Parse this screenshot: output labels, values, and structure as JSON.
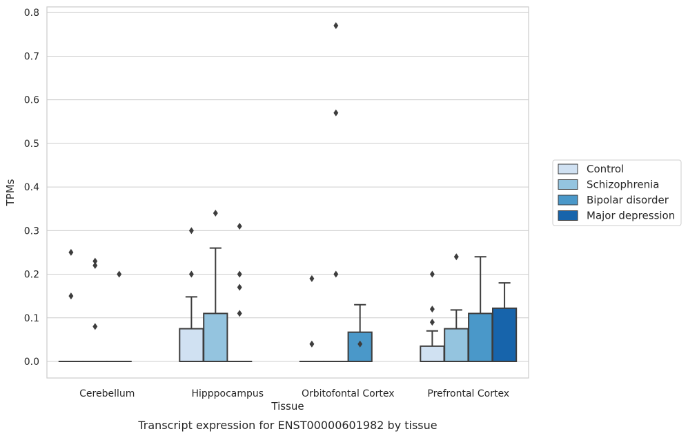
{
  "chart_data": {
    "type": "box",
    "title": "",
    "caption": "Transcript expression for ENST00000601982 by tissue",
    "xlabel": "Tissue",
    "ylabel": "TPMs",
    "ylim": [
      -0.038,
      0.813
    ],
    "yticks": [
      "0.0",
      "0.1",
      "0.2",
      "0.3",
      "0.4",
      "0.5",
      "0.6",
      "0.7",
      "0.8"
    ],
    "grid": true,
    "legend_position": "right",
    "categories": [
      "Cerebellum",
      "Hipppocampus",
      "Orbitofontal Cortex",
      "Prefrontal Cortex"
    ],
    "series": [
      {
        "name": "Control",
        "color": "#d0e1f2",
        "boxes": [
          {
            "q1": 0,
            "median": 0,
            "q3": 0,
            "whislo": 0,
            "whishi": 0,
            "fliers": [
              0.25,
              0.15
            ]
          },
          {
            "q1": 0,
            "median": 0,
            "q3": 0.075,
            "whislo": 0,
            "whishi": 0.148,
            "fliers": [
              0.3,
              0.2
            ]
          },
          {
            "q1": 0,
            "median": 0,
            "q3": 0,
            "whislo": 0,
            "whishi": 0,
            "fliers": [
              0.19,
              0.04
            ]
          },
          {
            "q1": 0,
            "median": 0,
            "q3": 0.035,
            "whislo": 0,
            "whishi": 0.07,
            "fliers": [
              0.2,
              0.12,
              0.09
            ]
          }
        ]
      },
      {
        "name": "Schizophrenia",
        "color": "#94c4df",
        "boxes": [
          {
            "q1": 0,
            "median": 0,
            "q3": 0,
            "whislo": 0,
            "whishi": 0,
            "fliers": [
              0.23,
              0.22,
              0.08
            ]
          },
          {
            "q1": 0,
            "median": 0,
            "q3": 0.11,
            "whislo": 0,
            "whishi": 0.26,
            "fliers": [
              0.34
            ]
          },
          {
            "q1": 0,
            "median": 0,
            "q3": 0,
            "whislo": 0,
            "whishi": 0,
            "fliers": [
              0.77,
              0.57,
              0.2
            ]
          },
          {
            "q1": 0,
            "median": 0,
            "q3": 0.075,
            "whislo": 0,
            "whishi": 0.118,
            "fliers": [
              0.24
            ]
          }
        ]
      },
      {
        "name": "Bipolar disorder",
        "color": "#4a98c9",
        "boxes": [
          {
            "q1": 0,
            "median": 0,
            "q3": 0,
            "whislo": 0,
            "whishi": 0,
            "fliers": [
              0.2
            ]
          },
          {
            "q1": 0,
            "median": 0,
            "q3": 0,
            "whislo": 0,
            "whishi": 0,
            "fliers": [
              0.31,
              0.2,
              0.17,
              0.11
            ]
          },
          {
            "q1": 0,
            "median": 0,
            "q3": 0.067,
            "whislo": 0,
            "whishi": 0.13,
            "fliers": [
              0.04
            ]
          },
          {
            "q1": 0,
            "median": 0,
            "q3": 0.11,
            "whislo": 0,
            "whishi": 0.24,
            "fliers": []
          }
        ]
      },
      {
        "name": "Major depression",
        "color": "#1764ab",
        "boxes": [
          null,
          null,
          null,
          {
            "q1": 0,
            "median": 0,
            "q3": 0.122,
            "whislo": 0,
            "whishi": 0.18,
            "fliers": []
          }
        ]
      }
    ]
  }
}
